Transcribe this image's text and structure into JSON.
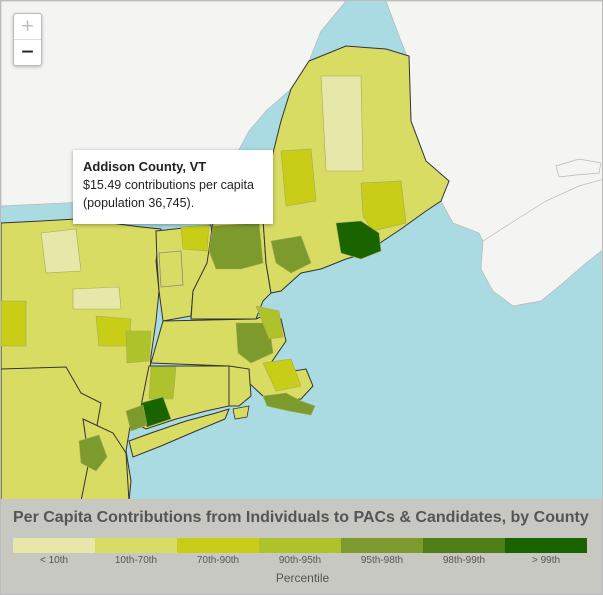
{
  "zoom": {
    "in_label": "+",
    "out_label": "−"
  },
  "tooltip": {
    "title": "Addison County, VT",
    "line1": "$15.49 contributions per capita",
    "line2": "(population 36,745)."
  },
  "legend": {
    "title": "Per Capita Contributions from Individuals to PACs & Candidates, by County",
    "axis_title": "Percentile",
    "bins": [
      {
        "label": "< 10th",
        "color": "#e6e7a8"
      },
      {
        "label": "10th-70th",
        "color": "#d9dc63"
      },
      {
        "label": "70th-90th",
        "color": "#c8cd18"
      },
      {
        "label": "90th-95th",
        "color": "#aec22c"
      },
      {
        "label": "95th-98th",
        "color": "#7d9b2d"
      },
      {
        "label": "98th-99th",
        "color": "#4f7d16"
      },
      {
        "label": "> 99th",
        "color": "#1a6400"
      }
    ]
  },
  "colors": {
    "water": "#aadbe2",
    "canada": "#f4f4f2",
    "state_border": "#333333",
    "county_border": "#a6aa55"
  }
}
